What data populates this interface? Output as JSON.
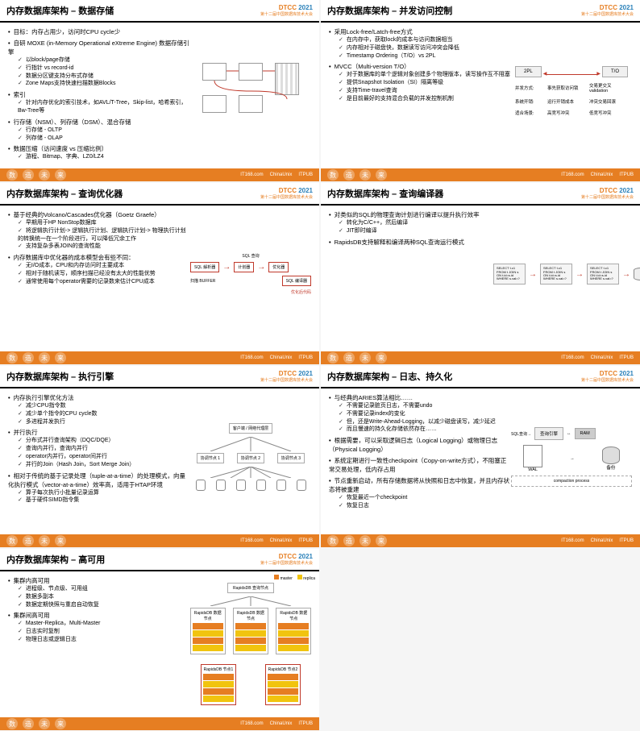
{
  "conf": {
    "name": "DTCC",
    "year": "2021",
    "sub": "第十二届中国数据库技术大会"
  },
  "footer": {
    "word": "数 造 未 来",
    "sponsors": [
      "IT168.com",
      "ChinaUnix",
      "ITPUB"
    ]
  },
  "colors": {
    "accent": "#e67e22",
    "blue": "#2980b9",
    "red": "#c0392b",
    "gray": "#aaaaaa"
  },
  "slides": [
    {
      "title": "内存数据库架构 – 数据存储",
      "bullets": [
        {
          "t": "目标：内存占用少，访问时CPU cycle少"
        },
        {
          "t": "自研 MOXE (in-Memory Operational eXtreme Engine) 数据存储引擎",
          "sub": [
            "以block/page存储",
            "行指针 vs record-id",
            "数据分区键支持分布式存储",
            "Zone Maps支持快速扫描数据Blocks"
          ]
        },
        {
          "t": "索引",
          "sub": [
            "针对内存优化的索引技术，如AVL/T-Tree，Skip-list，哈希索引，Bw-Tree等"
          ]
        },
        {
          "t": "行存储（NSM）、列存储（DSM）、混合存储",
          "sub": [
            "行存储 - OLTP",
            "列存储 - OLAP"
          ]
        },
        {
          "t": "数据压缩（访问速度 vs 压缩比例）",
          "sub": [
            "游程、Bitmap、字典、LZ0/LZ4"
          ]
        }
      ]
    },
    {
      "title": "内存数据库架构 – 并发访问控制",
      "bullets": [
        {
          "t": "采用Lock-free/Latch-free方式",
          "sub": [
            "在内存中，获取lock的成本与访问数据相当",
            "内存相对于磁盘快，数据读写访问冲突会降低",
            "Timestamp Ordering（T/O）vs 2PL"
          ]
        },
        {
          "t": "MVCC（Multi-version T/O）",
          "sub": [
            "对于数据库的单个逻辑对象创建多个物理版本，读写操作互不阻塞",
            "提供Snapshot Isolation（SI）隔离等级",
            "支持Time-travel查询",
            "是目前最好的支持混合负载的并发控制机制"
          ]
        }
      ],
      "d2": {
        "top": [
          "2PL",
          "T/O"
        ],
        "rows": [
          {
            "l": "并发方式",
            "a": "事先获取访问锁",
            "b": "交易更交叉validation"
          },
          {
            "l": "系统开销",
            "a": "运行开销成本",
            "b": "冲突交易回滚"
          },
          {
            "l": "适合场景",
            "a": "高竞写冲突",
            "b": "低竞写冲突"
          }
        ]
      }
    },
    {
      "title": "内存数据库架构 – 查询优化器",
      "bullets": [
        {
          "t": "基于经典的Volcano/Cascades优化器（Goetz Graefe）",
          "sub": [
            "早期用于HP NonStop数据库",
            "将逻辑执行计划-> 逻辑执行计划、逻辑执行计划-> 物理执行计划的转换统一在一个阶段进行，可以降低冗余工作",
            "支持复杂多表JOIN的查询性能"
          ]
        },
        {
          "t": "内存数据库中优化器的成本模型会有些不同：",
          "sub": [
            "无I/O成本，CPU和内存访问时主要成本",
            "相对于随机读写，顺序扫描已经没有太大的性能优势",
            "通常使用每个operator需要的记录数来估计CPU成本"
          ]
        }
      ],
      "d3": {
        "top": "SQL 查询",
        "nodes": [
          "SQL 解析器",
          "计划器",
          "优化器",
          "SQL 编译器"
        ],
        "in": "扫描 BUFFER",
        "out": "优化后代码"
      }
    },
    {
      "title": "内存数据库架构 – 查询编译器",
      "bullets": [
        {
          "t": "对类似的SQL的物理查询计划进行编译以提升执行效率",
          "sub": [
            "转化为C/C++，然后编译",
            "JIT即时编译"
          ]
        },
        {
          "t": "RapidsDB支持解释和编译两种SQL查询运行模式"
        }
      ],
      "d4": {
        "sql": [
          "SELECT t.c1 FROM t JOIN s ON t.id=s.id WHERE s.val=?",
          "SELECT t.c1 FROM t JOIN s ON t.id=s.id WHERE s.val=?",
          "SELECT t.c1 FROM t JOIN s ON t.id=s.id WHERE s.val=?"
        ]
      }
    },
    {
      "title": "内存数据库架构 – 执行引擎",
      "bullets": [
        {
          "t": "内存执行引擎优化方法",
          "sub": [
            "减少CPU指令数",
            "减少单个指令的CPU cycle数",
            "多进程并发执行"
          ]
        },
        {
          "t": "并行执行",
          "sub": [
            "分布式并行查询架构（DQC/DQE）",
            "查询内并行，查询内并行",
            "operator内并行，operator间并行",
            "并行的Join（Hash Join，Sort Merge Join）"
          ]
        },
        {
          "t": "相对于传统的基于记录处理（tuple-at-a-time）的处理模式，向量化执行模式（vector-at-a-time）效率高，适用于HTAP环境",
          "sub": [
            "算子每次执行小批量记录运算",
            "基于硬件SIMD指令集"
          ]
        }
      ],
      "d5": {
        "top": "客户端 / 网络代理层",
        "mid": [
          "协调节点 1",
          "协调节点 2",
          "协调节点 3"
        ],
        "bot_count": 6
      }
    },
    {
      "title": "内存数据库架构 – 日志、持久化",
      "bullets": [
        {
          "t": "与经典的ARIES算法相比……",
          "sub": [
            "不需要记录脏页日志，不需要undo",
            "不需要记录index的变化",
            "但，还是Write-Ahead-Logging，以减少磁盘读写，减少延迟",
            "而且慢速的持久化存储依然存在……"
          ]
        },
        {
          "t": "根据需要，可以采取逻辑日志（Logical Logging）或物理日志（Physical Logging）"
        },
        {
          "t": "系统定期进行一致性checkpoint（Copy-on-write方式），不阻塞正常交易处理，低内存占用"
        },
        {
          "t": "节点重新启动，所有存储数据将从快照和日志中恢复，并且内存状态将被重建",
          "sub": [
            "恢复最近一个checkpoint",
            "恢复日志"
          ]
        }
      ],
      "d6": {
        "top": [
          "查询引擎",
          "RAM"
        ],
        "wal": "WAL",
        "cyl": "备份",
        "proc": "compaction process"
      }
    },
    {
      "title": "内存数据库架构 – 高可用",
      "bullets": [
        {
          "t": "集群内高可用",
          "sub": [
            "进程级、节点级、可用组",
            "数据多副本",
            "数据定期快照与重启自动恢复"
          ]
        },
        {
          "t": "集群间高可用",
          "sub": [
            "Master-Replica，Multi-Master",
            "日志实时复制",
            "物理日志或逻辑日志"
          ]
        }
      ],
      "d7": {
        "top": "RapidsDB 查询节点",
        "legend": [
          {
            "c": "#e67e22",
            "t": "master"
          },
          {
            "c": "#f1c40f",
            "t": "replica"
          }
        ],
        "mid": [
          "RapidsDB 数据节点",
          "RapidsDB 数据节点",
          "RapidsDB 数据节点"
        ],
        "bot": [
          "RapidsDB 节点1",
          "RapidsDB 节点2"
        ],
        "blk_colors": [
          "#e67e22",
          "#f1c40f",
          "#e67e22",
          "#f1c40f"
        ]
      }
    }
  ]
}
